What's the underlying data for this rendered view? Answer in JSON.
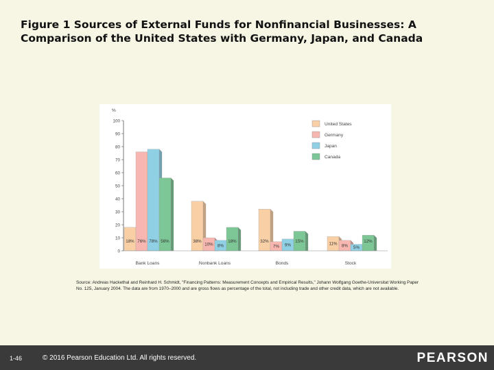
{
  "slide": {
    "title": "Figure 1 Sources of External Funds for Nonfinancial Businesses: A Comparison of the United States with Germany, Japan, and Canada",
    "source_note": "Source: Andreas Hackethal and Reinhard H. Schmidt, \"Financing Patterns: Measurement Concepts and Empirical Results,\" Johann Wolfgang Goethe-Universitat Working Paper No. 125, January 2004. The data are from 1970–2000 and are gross flows as percentage of the total, not including trade and other credit data, which are not available.",
    "slide_number": "1-46",
    "copyright": "© 2016 Pearson Education Ltd. All rights reserved.",
    "logo_text": "PEARSON"
  },
  "chart_data": {
    "type": "bar",
    "ylabel": "%",
    "ylim": [
      0,
      100
    ],
    "yticks": [
      0,
      10,
      20,
      30,
      40,
      50,
      60,
      70,
      80,
      90,
      100
    ],
    "categories": [
      "Bank Loans",
      "Nonbank Loans",
      "Bonds",
      "Stock"
    ],
    "series": [
      {
        "name": "United States",
        "color": "#f9cfa6",
        "values": [
          18,
          38,
          32,
          11
        ],
        "labels": [
          "18%",
          "38%",
          "32%",
          "11%"
        ]
      },
      {
        "name": "Germany",
        "color": "#f7b7b0",
        "values": [
          76,
          10,
          7,
          8
        ],
        "labels": [
          "76%",
          "10%",
          "7%",
          "8%"
        ]
      },
      {
        "name": "Japan",
        "color": "#8fd0e4",
        "values": [
          78,
          8,
          9,
          5
        ],
        "labels": [
          "78%",
          "8%",
          "9%",
          "5%"
        ]
      },
      {
        "name": "Canada",
        "color": "#7dc796",
        "values": [
          56,
          18,
          15,
          12
        ],
        "labels": [
          "56%",
          "18%",
          "15%",
          "12%"
        ]
      }
    ],
    "legend_position": "top-right",
    "grid": false
  }
}
